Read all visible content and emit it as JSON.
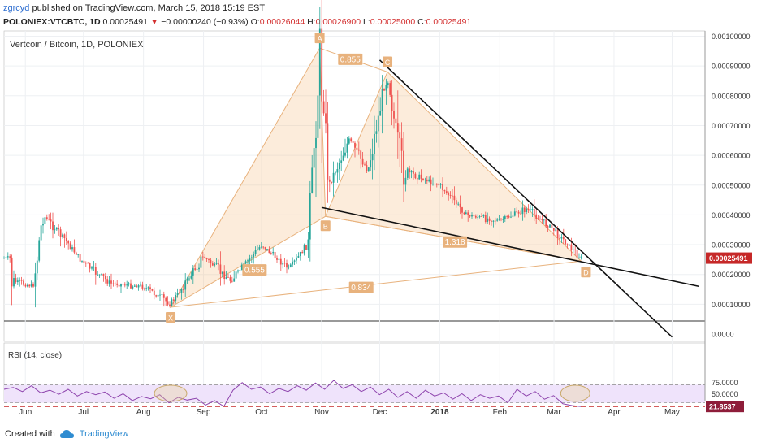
{
  "header": {
    "author": "zgrcyd",
    "published": "published on TradingView.com, March 15, 2018 15:19 EST",
    "symbol": "POLONIEX:VTCBTC, 1D",
    "last": "0.00025491",
    "change_arrow": "▼",
    "change": "−0.00000240 (−0.93%)",
    "o_label": "O:",
    "o": "0.00026044",
    "h_label": "H:",
    "h": "0.00026900",
    "l_label": "L:",
    "l": "0.00025000",
    "c_label": "C:",
    "c": "0.00025491"
  },
  "chart_data": [
    {
      "type": "candlestick",
      "title": "Vertcoin / Bitcoin, 1D, POLONIEX",
      "x_tick_labels": [
        "Jun",
        "Jul",
        "Aug",
        "Sep",
        "Oct",
        "Nov",
        "Dec",
        "2018",
        "Feb",
        "Mar",
        "Apr",
        "May"
      ],
      "y_tick_labels": [
        "0.00100000",
        "0.00090000",
        "0.00080000",
        "0.00070000",
        "0.00060000",
        "0.00050000",
        "0.00040000",
        "0.00030000",
        "0.00020000",
        "0.00010000",
        "0.0000"
      ],
      "ylim": [
        0,
        0.001
      ],
      "last_price_label": "0.00025491",
      "last_price": 0.00025491,
      "price_path": [
        [
          "2017-05-25",
          0.00018
        ],
        [
          "2017-06-05",
          0.00016
        ],
        [
          "2017-06-10",
          0.0004
        ],
        [
          "2017-06-20",
          0.00033
        ],
        [
          "2017-07-01",
          0.00024
        ],
        [
          "2017-07-15",
          0.00017
        ],
        [
          "2017-08-01",
          0.00016
        ],
        [
          "2017-08-15",
          0.0001
        ],
        [
          "2017-09-01",
          0.00026
        ],
        [
          "2017-09-15",
          0.00018
        ],
        [
          "2017-10-01",
          0.0003
        ],
        [
          "2017-10-15",
          0.00022
        ],
        [
          "2017-10-25",
          0.0003
        ],
        [
          "2017-10-31",
          0.00095
        ],
        [
          "2017-11-05",
          0.0005
        ],
        [
          "2017-11-15",
          0.00065
        ],
        [
          "2017-11-25",
          0.00055
        ],
        [
          "2017-12-05",
          0.00088
        ],
        [
          "2017-12-12",
          0.00055
        ],
        [
          "2018-01-01",
          0.0005
        ],
        [
          "2018-01-15",
          0.0004
        ],
        [
          "2018-02-01",
          0.00038
        ],
        [
          "2018-02-15",
          0.00042
        ],
        [
          "2018-03-01",
          0.00035
        ],
        [
          "2018-03-15",
          0.00025491
        ]
      ],
      "harmonic_pattern": {
        "points": [
          {
            "label": "X",
            "date": "2017-08-15",
            "price": 9e-05
          },
          {
            "label": "A",
            "date": "2017-10-31",
            "price": 0.00096
          },
          {
            "label": "B",
            "date": "2017-11-03",
            "price": 0.000395
          },
          {
            "label": "C",
            "date": "2017-12-05",
            "price": 0.00088
          },
          {
            "label": "D",
            "date": "2018-03-15",
            "price": 0.000245
          }
        ],
        "ratios": [
          "0.855",
          "0.555",
          "1.318",
          "0.834"
        ]
      },
      "trendlines": [
        {
          "from": [
            "2017-12-01",
            0.00092
          ],
          "to": [
            "2018-05-01",
            -1e-05
          ]
        },
        {
          "from": [
            "2017-11-01",
            0.000425
          ],
          "to": [
            "2018-05-15",
            0.00016
          ]
        }
      ]
    },
    {
      "type": "line",
      "title": "RSI (14, close)",
      "y_tick_labels": [
        "75.0000",
        "50.0000"
      ],
      "current_label": "21.8537",
      "current": 21.8537,
      "bands": [
        70,
        30
      ],
      "values": [
        60,
        64,
        55,
        68,
        52,
        58,
        49,
        60,
        45,
        55,
        48,
        54,
        40,
        50,
        35,
        44,
        39,
        48,
        30,
        42,
        36,
        40,
        25,
        35,
        22,
        58,
        75,
        60,
        65,
        50,
        62,
        55,
        68,
        58,
        74,
        60,
        80,
        62,
        70,
        55,
        65,
        48,
        60,
        42,
        55,
        40,
        58,
        45,
        52,
        38,
        50,
        35,
        48,
        40,
        45,
        30,
        60,
        45,
        55,
        38,
        46,
        28,
        24,
        21.85
      ]
    }
  ],
  "footer": {
    "created_with": "Created with",
    "brand": "TradingView"
  }
}
